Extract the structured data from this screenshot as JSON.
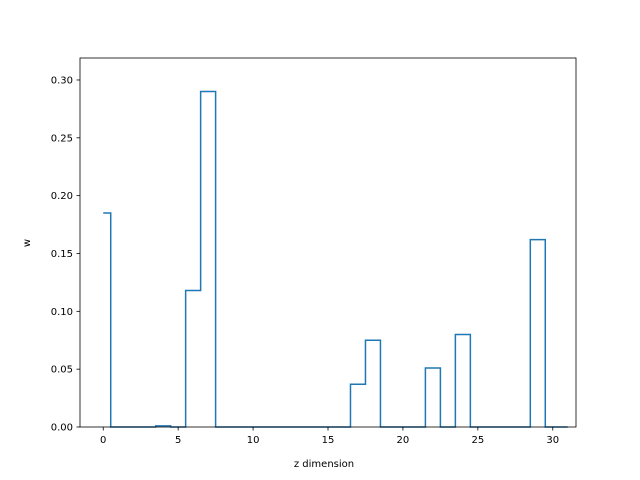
{
  "chart_data": {
    "type": "line",
    "drawstyle": "steps-mid",
    "title": "",
    "xlabel": "z dimension",
    "ylabel": "w",
    "xlim": [
      -1.55,
      31.55
    ],
    "ylim": [
      0.0,
      0.319
    ],
    "xticks": [
      0,
      5,
      10,
      15,
      20,
      25,
      30
    ],
    "yticks": [
      0.0,
      0.05,
      0.1,
      0.15,
      0.2,
      0.25,
      0.3
    ],
    "xtick_labels": [
      "0",
      "5",
      "10",
      "15",
      "20",
      "25",
      "30"
    ],
    "ytick_labels": [
      "0.00",
      "0.05",
      "0.10",
      "0.15",
      "0.20",
      "0.25",
      "0.30"
    ],
    "grid": false,
    "legend": "none",
    "series": [
      {
        "color": "#1f77b4",
        "x": [
          0,
          1,
          2,
          3,
          4,
          5,
          6,
          7,
          8,
          9,
          10,
          11,
          12,
          13,
          14,
          15,
          16,
          17,
          18,
          19,
          20,
          21,
          22,
          23,
          24,
          25,
          26,
          27,
          28,
          29,
          30,
          31
        ],
        "y": [
          0.185,
          0,
          0,
          0,
          0.001,
          0,
          0.118,
          0.29,
          0,
          0,
          0,
          0,
          0,
          0,
          0,
          0,
          0,
          0.037,
          0.075,
          0,
          0,
          0,
          0.051,
          0,
          0.08,
          0,
          0,
          0,
          0,
          0.162,
          0,
          0
        ]
      }
    ]
  }
}
